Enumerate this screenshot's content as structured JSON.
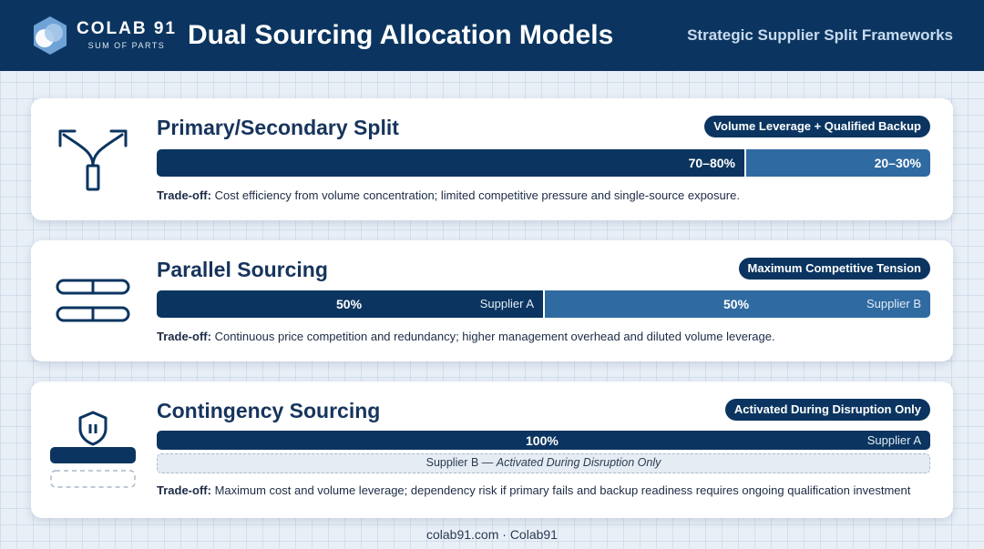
{
  "header": {
    "brand_name": "COLAB 91",
    "brand_tagline": "SUM OF PARTS",
    "title": "Dual Sourcing Allocation Models",
    "subtitle": "Strategic Supplier Split Frameworks"
  },
  "colors": {
    "navy": "#0b3560",
    "mid_blue": "#2f6aa1",
    "background": "#e9eff7"
  },
  "models": [
    {
      "icon": "split-arrows-icon",
      "title": "Primary/Secondary Split",
      "badge": "Volume Leverage + Qualified Backup",
      "segments": [
        {
          "value_label": "70–80%",
          "share": 0.76
        },
        {
          "value_label": "20–30%",
          "share": 0.24
        }
      ],
      "tradeoff_label": "Trade-off:",
      "tradeoff_text": "Cost efficiency from volume concentration; limited competitive pressure and single-source exposure."
    },
    {
      "icon": "parallel-bars-icon",
      "title": "Parallel Sourcing",
      "badge": "Maximum Competitive Tension",
      "segments": [
        {
          "value_label": "50%",
          "supplier": "Supplier A",
          "share": 0.5
        },
        {
          "value_label": "50%",
          "supplier": "Supplier B",
          "share": 0.5
        }
      ],
      "tradeoff_label": "Trade-off:",
      "tradeoff_text": "Continuous price competition and redundancy; higher management overhead and diluted volume leverage."
    },
    {
      "icon": "shield-pause-icon",
      "title": "Contingency Sourcing",
      "badge": "Activated During Disruption Only",
      "segments": [
        {
          "value_label": "100%",
          "supplier": "Supplier A",
          "share": 1.0
        }
      ],
      "backup_supplier": "Supplier B —",
      "backup_note": "Activated During Disruption Only",
      "tradeoff_label": "Trade-off:",
      "tradeoff_text": "Maximum cost and volume leverage; dependency risk if primary fails and backup readiness requires ongoing qualification investment"
    }
  ],
  "footer": "colab91.com · Colab91"
}
